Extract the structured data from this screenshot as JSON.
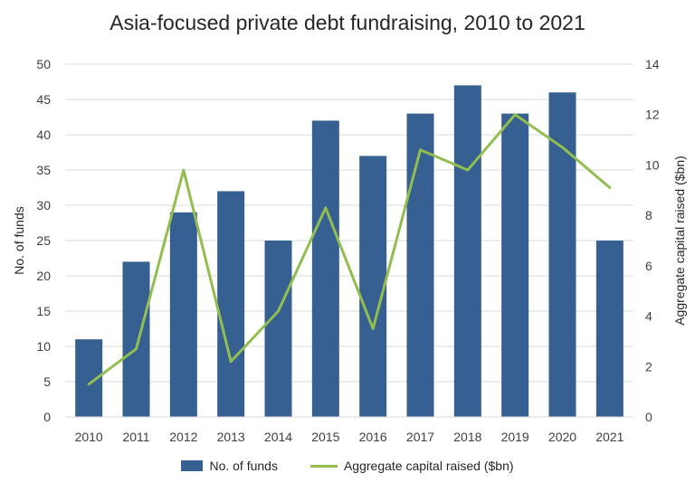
{
  "colors": {
    "bar": "#376092",
    "line": "#92bd4f",
    "grid": "#d9d9d9"
  },
  "chart_data": {
    "type": "bar",
    "title": "Asia-focused private debt fundraising, 2010 to 2021",
    "categories": [
      "2010",
      "2011",
      "2012",
      "2013",
      "2014",
      "2015",
      "2016",
      "2017",
      "2018",
      "2019",
      "2020",
      "2021"
    ],
    "ylabel": "No. of funds",
    "y2label": "Aggregate capital raised ($bn)",
    "ylim": [
      0,
      50
    ],
    "y2lim": [
      0,
      14
    ],
    "yticks": [
      "0",
      "5",
      "10",
      "15",
      "20",
      "25",
      "30",
      "35",
      "40",
      "45",
      "50"
    ],
    "y2ticks": [
      "0",
      "2",
      "4",
      "6",
      "8",
      "10",
      "12",
      "14"
    ],
    "grid": true,
    "legend_position": "bottom",
    "series": [
      {
        "name": "No. of funds",
        "type": "bar",
        "axis": "left",
        "values": [
          11,
          22,
          29,
          32,
          25,
          42,
          37,
          43,
          47,
          43,
          46,
          25
        ]
      },
      {
        "name": "Aggregate capital raised ($bn)",
        "type": "line",
        "axis": "right",
        "values": [
          1.3,
          2.7,
          9.8,
          2.2,
          4.2,
          8.3,
          3.5,
          10.6,
          9.8,
          12.0,
          10.7,
          9.1
        ]
      }
    ]
  }
}
